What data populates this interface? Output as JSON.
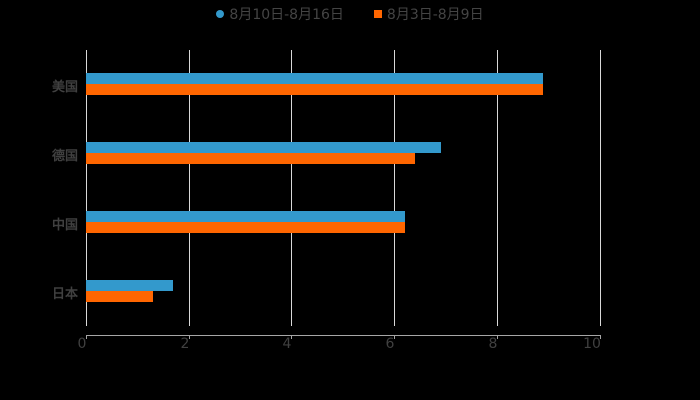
{
  "chart_data": {
    "type": "bar",
    "orientation": "horizontal",
    "title": "",
    "categories": [
      "美国",
      "德国",
      "中国",
      "日本"
    ],
    "series": [
      {
        "name": "8月10日-8月16日",
        "color": "#3399cc",
        "values": [
          8.9,
          6.9,
          6.2,
          1.7
        ]
      },
      {
        "name": "8月3日-8月9日",
        "color": "#ff6600",
        "values": [
          8.9,
          6.4,
          6.2,
          1.3
        ]
      }
    ],
    "xlabel": "",
    "ylabel": "",
    "xlim": [
      0,
      10
    ],
    "xticks": [
      "0",
      "2",
      "4",
      "6",
      "8",
      "10"
    ],
    "grid": true,
    "legend_position": "top"
  },
  "legend": {
    "items": [
      {
        "label": "8月10日-8月16日",
        "color": "#3399cc",
        "shape": "circle"
      },
      {
        "label": "8月3日-8月9日",
        "color": "#ff6600",
        "shape": "square"
      }
    ]
  },
  "axis": {
    "ticks": [
      "0",
      "2",
      "4",
      "6",
      "8",
      "10"
    ]
  },
  "categories": [
    "美国",
    "德国",
    "中国",
    "日本"
  ]
}
